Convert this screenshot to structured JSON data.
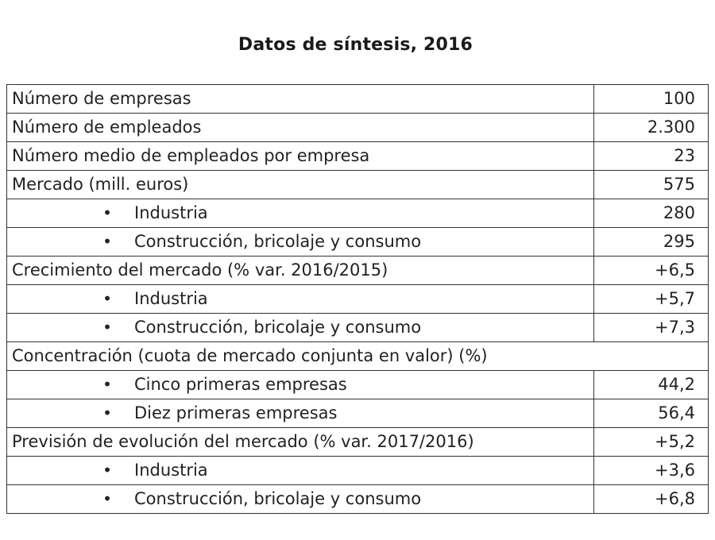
{
  "title": "Datos de síntesis, 2016",
  "rows": [
    {
      "label": "Número de empresas",
      "value": "100",
      "bullet": false
    },
    {
      "label": "Número de empleados",
      "value": "2.300",
      "bullet": false
    },
    {
      "label": "Número medio de empleados por empresa",
      "value": "23",
      "bullet": false
    },
    {
      "label": "Mercado (mill. euros)",
      "value": "575",
      "bullet": false
    },
    {
      "label": "Industria",
      "value": "280",
      "bullet": true
    },
    {
      "label": "Construcción, bricolaje y consumo",
      "value": "295",
      "bullet": true
    },
    {
      "label": "Crecimiento del mercado (% var. 2016/2015)",
      "value": "+6,5",
      "bullet": false
    },
    {
      "label": "Industria",
      "value": "+5,7",
      "bullet": true
    },
    {
      "label": "Construcción, bricolaje y consumo",
      "value": "+7,3",
      "bullet": true
    },
    {
      "label": "Concentración (cuota de mercado conjunta en valor) (%)",
      "value": "",
      "bullet": false,
      "span": true
    },
    {
      "label": "Cinco primeras empresas",
      "value": "44,2",
      "bullet": true
    },
    {
      "label": "Diez primeras empresas",
      "value": "56,4",
      "bullet": true
    },
    {
      "label": "Previsión de evolución del mercado (% var. 2017/2016)",
      "value": "+5,2",
      "bullet": false
    },
    {
      "label": "Industria",
      "value": "+3,6",
      "bullet": true
    },
    {
      "label": "Construcción, bricolaje y consumo",
      "value": "+6,8",
      "bullet": true
    }
  ]
}
